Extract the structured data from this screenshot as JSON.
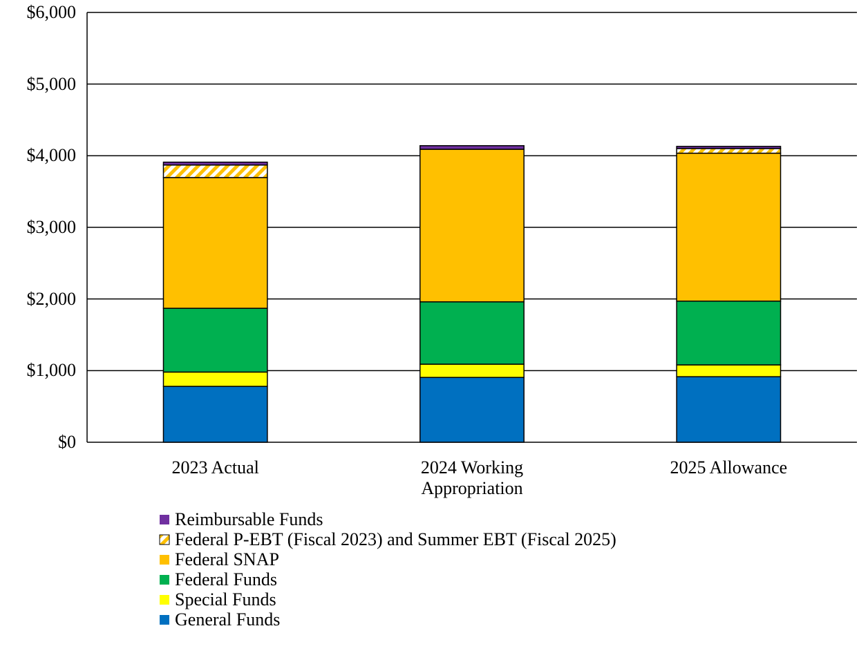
{
  "chart_data": {
    "type": "stacked_bar",
    "categories": [
      "2023 Actual",
      "2024 Working Appropriation",
      "2025 Allowance"
    ],
    "series": [
      {
        "name": "General Funds",
        "color": "#0070c0",
        "values": [
          780,
          905,
          915
        ]
      },
      {
        "name": "Special Funds",
        "color": "#ffff00",
        "values": [
          200,
          185,
          165
        ]
      },
      {
        "name": "Federal Funds",
        "color": "#00b050",
        "values": [
          890,
          870,
          890
        ]
      },
      {
        "name": "Federal SNAP",
        "color": "#ffc000",
        "values": [
          1825,
          2130,
          2065
        ]
      },
      {
        "name": "Federal P-EBT (Fiscal 2023) and Summer EBT (Fiscal 2025)",
        "color": "#ffc000",
        "pattern": "hatch",
        "values": [
          175,
          0,
          65
        ]
      },
      {
        "name": "Reimbursable Funds",
        "color": "#7030a0",
        "values": [
          40,
          50,
          30
        ]
      }
    ],
    "ylim": [
      0,
      6000
    ],
    "yticks": [
      {
        "value": 0,
        "label": "$0"
      },
      {
        "value": 1000,
        "label": "$1,000"
      },
      {
        "value": 2000,
        "label": "$2,000"
      },
      {
        "value": 3000,
        "label": "$3,000"
      },
      {
        "value": 4000,
        "label": "$4,000"
      },
      {
        "value": 5000,
        "label": "$5,000"
      },
      {
        "value": 6000,
        "label": "$6,000"
      }
    ],
    "grid": true
  }
}
